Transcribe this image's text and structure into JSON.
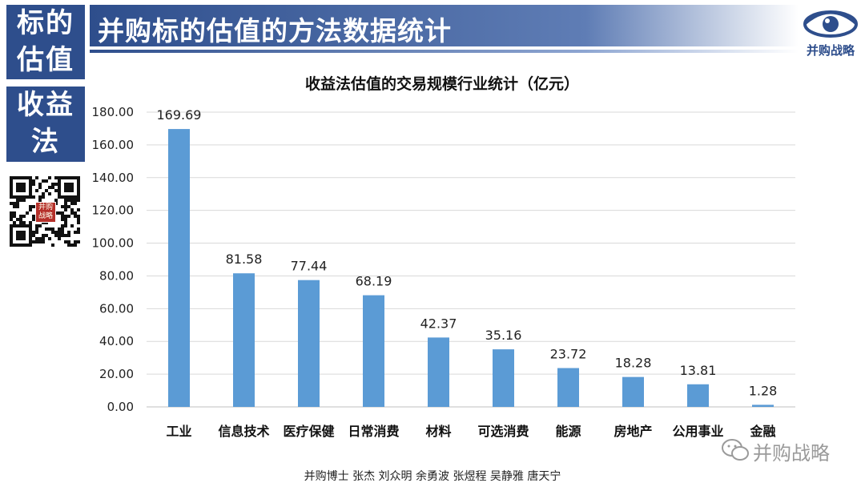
{
  "header": {
    "side_top_label": "标的\n估值",
    "side_mid_label": "收益\n法",
    "title": "并购标的估值的方法数据统计",
    "logo_text": "并购战略"
  },
  "qr": {
    "overlay_text": "并购战略"
  },
  "footer": {
    "authors": "并购博士 张杰 刘众明 余勇波 张煜程 吴静雅 唐天宁"
  },
  "watermark": {
    "text": "并购战略"
  },
  "colors": {
    "bar": "#5b9bd5",
    "brand": "#2e4e8c"
  },
  "chart_data": {
    "type": "bar",
    "title": "收益法估值的交易规模行业统计（亿元）",
    "categories": [
      "工业",
      "信息技术",
      "医疗保健",
      "日常消费",
      "材料",
      "可选消费",
      "能源",
      "房地产",
      "公用事业",
      "金融"
    ],
    "values": [
      169.69,
      81.58,
      77.44,
      68.19,
      42.37,
      35.16,
      23.72,
      18.28,
      13.81,
      1.28
    ],
    "value_labels": [
      "169.69",
      "81.58",
      "77.44",
      "68.19",
      "42.37",
      "35.16",
      "23.72",
      "18.28",
      "13.81",
      "1.28"
    ],
    "y_ticks": [
      "0.00",
      "20.00",
      "40.00",
      "60.00",
      "80.00",
      "100.00",
      "120.00",
      "140.00",
      "160.00",
      "180.00"
    ],
    "ylim": [
      0,
      180
    ],
    "grid": true
  }
}
